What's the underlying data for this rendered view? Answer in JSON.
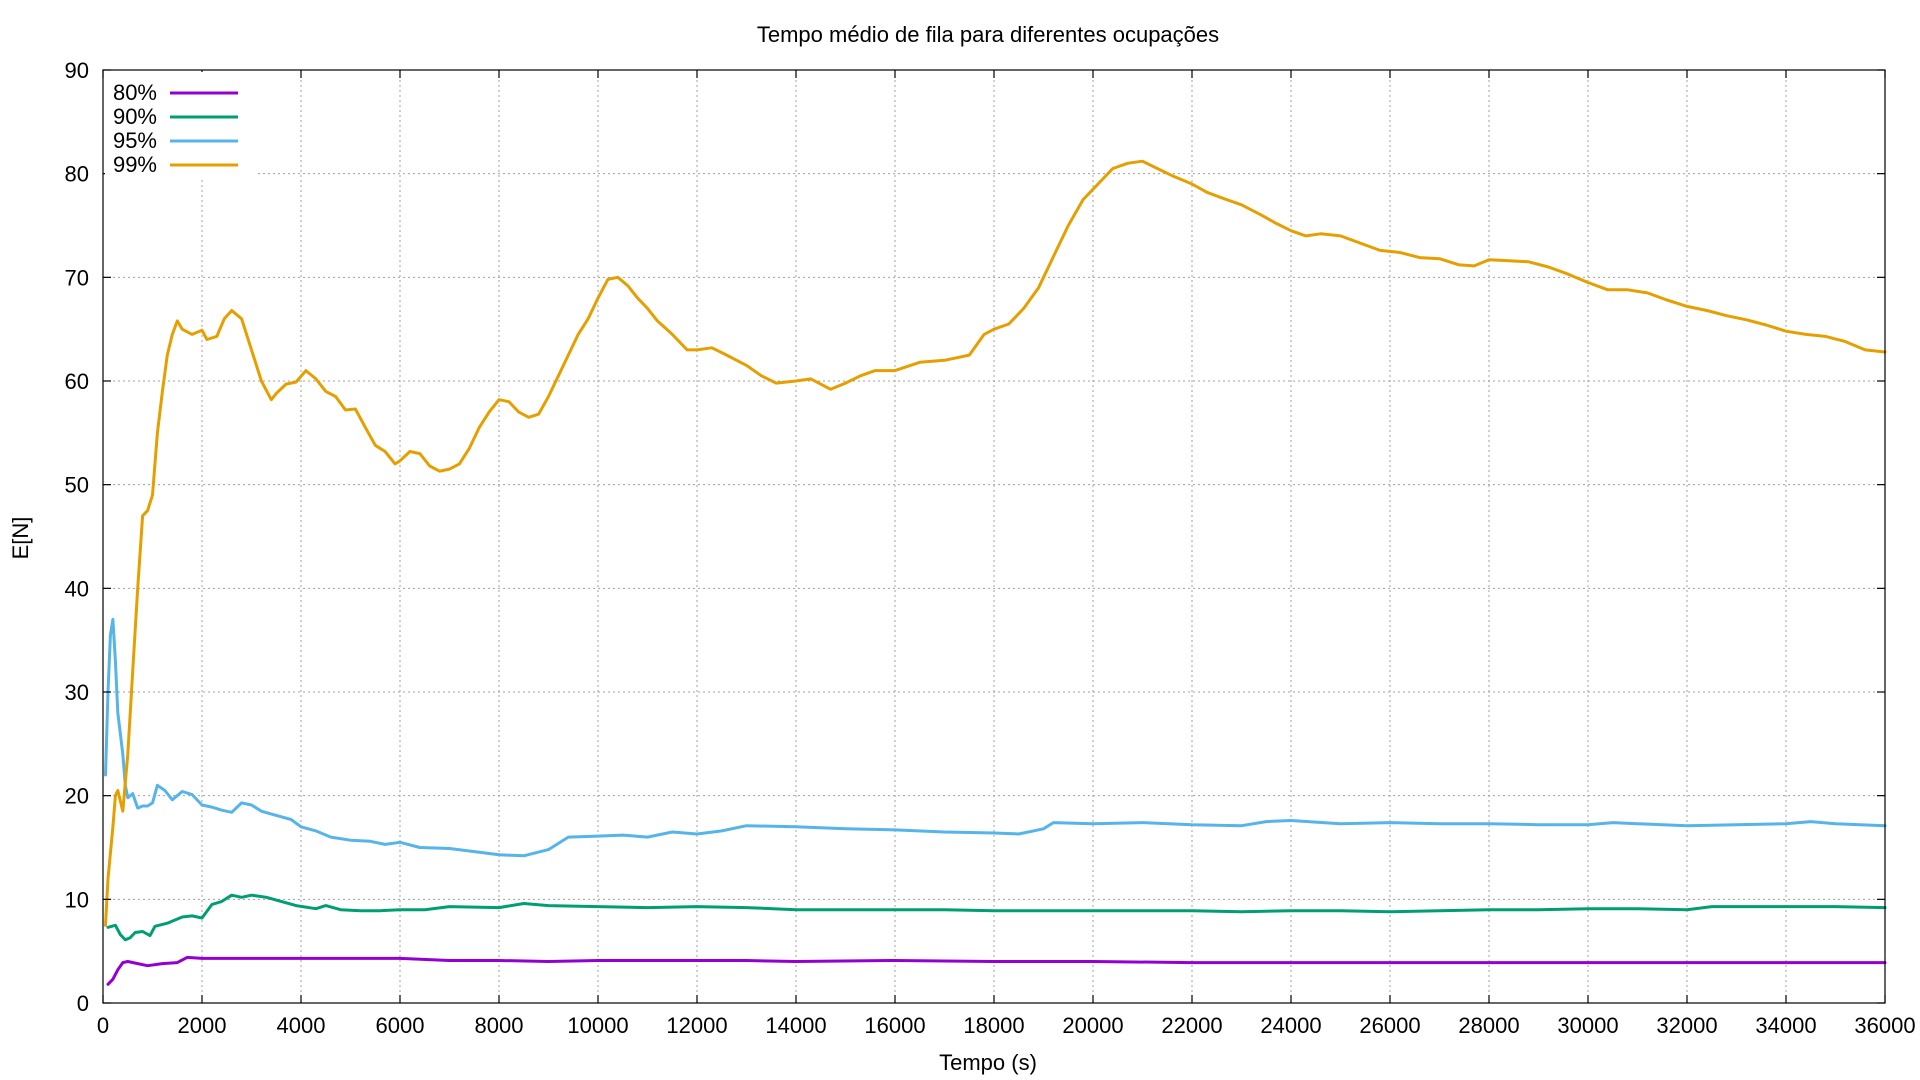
{
  "chart_data": {
    "type": "line",
    "title": "Tempo médio de fila para diferentes ocupações",
    "xlabel": "Tempo (s)",
    "ylabel": "E[N]",
    "xlim": [
      0,
      36000
    ],
    "ylim": [
      0,
      90
    ],
    "xticks": [
      0,
      2000,
      4000,
      6000,
      8000,
      10000,
      12000,
      14000,
      16000,
      18000,
      20000,
      22000,
      24000,
      26000,
      28000,
      30000,
      32000,
      34000,
      36000
    ],
    "yticks": [
      0,
      10,
      20,
      30,
      40,
      50,
      60,
      70,
      80,
      90
    ],
    "grid": true,
    "legend_position": "top-left",
    "series": [
      {
        "name": "80%",
        "color": "#9400d3",
        "points": [
          [
            100,
            1.8
          ],
          [
            200,
            2.3
          ],
          [
            300,
            3.2
          ],
          [
            400,
            3.9
          ],
          [
            500,
            4.0
          ],
          [
            700,
            3.8
          ],
          [
            900,
            3.6
          ],
          [
            1200,
            3.8
          ],
          [
            1500,
            3.9
          ],
          [
            1700,
            4.4
          ],
          [
            2000,
            4.3
          ],
          [
            2500,
            4.3
          ],
          [
            3000,
            4.3
          ],
          [
            4000,
            4.3
          ],
          [
            5000,
            4.3
          ],
          [
            6000,
            4.3
          ],
          [
            7000,
            4.1
          ],
          [
            8000,
            4.1
          ],
          [
            9000,
            4.0
          ],
          [
            10000,
            4.1
          ],
          [
            12000,
            4.1
          ],
          [
            13000,
            4.1
          ],
          [
            14000,
            4.0
          ],
          [
            16000,
            4.1
          ],
          [
            18000,
            4.0
          ],
          [
            20000,
            4.0
          ],
          [
            22000,
            3.9
          ],
          [
            24000,
            3.9
          ],
          [
            26000,
            3.9
          ],
          [
            28000,
            3.9
          ],
          [
            30000,
            3.9
          ],
          [
            32000,
            3.9
          ],
          [
            34000,
            3.9
          ],
          [
            36000,
            3.9
          ]
        ]
      },
      {
        "name": "90%",
        "color": "#009e73",
        "points": [
          [
            100,
            7.3
          ],
          [
            250,
            7.5
          ],
          [
            350,
            6.6
          ],
          [
            450,
            6.1
          ],
          [
            550,
            6.3
          ],
          [
            650,
            6.8
          ],
          [
            800,
            6.9
          ],
          [
            950,
            6.5
          ],
          [
            1050,
            7.4
          ],
          [
            1300,
            7.7
          ],
          [
            1600,
            8.3
          ],
          [
            1800,
            8.4
          ],
          [
            2000,
            8.2
          ],
          [
            2200,
            9.5
          ],
          [
            2400,
            9.8
          ],
          [
            2600,
            10.4
          ],
          [
            2800,
            10.2
          ],
          [
            3000,
            10.4
          ],
          [
            3300,
            10.2
          ],
          [
            3600,
            9.8
          ],
          [
            3900,
            9.4
          ],
          [
            4300,
            9.1
          ],
          [
            4500,
            9.4
          ],
          [
            4800,
            9.0
          ],
          [
            5200,
            8.9
          ],
          [
            5600,
            8.9
          ],
          [
            6000,
            9.0
          ],
          [
            6500,
            9.0
          ],
          [
            7000,
            9.3
          ],
          [
            8000,
            9.2
          ],
          [
            8500,
            9.6
          ],
          [
            9000,
            9.4
          ],
          [
            10000,
            9.3
          ],
          [
            11000,
            9.2
          ],
          [
            12000,
            9.3
          ],
          [
            13000,
            9.2
          ],
          [
            14000,
            9.0
          ],
          [
            15000,
            9.0
          ],
          [
            16000,
            9.0
          ],
          [
            17000,
            9.0
          ],
          [
            18000,
            8.9
          ],
          [
            19000,
            8.9
          ],
          [
            20000,
            8.9
          ],
          [
            21000,
            8.9
          ],
          [
            22000,
            8.9
          ],
          [
            23000,
            8.8
          ],
          [
            24000,
            8.9
          ],
          [
            25000,
            8.9
          ],
          [
            26000,
            8.8
          ],
          [
            27000,
            8.9
          ],
          [
            28000,
            9.0
          ],
          [
            29000,
            9.0
          ],
          [
            30000,
            9.1
          ],
          [
            31000,
            9.1
          ],
          [
            32000,
            9.0
          ],
          [
            32500,
            9.3
          ],
          [
            33000,
            9.3
          ],
          [
            34000,
            9.3
          ],
          [
            35000,
            9.3
          ],
          [
            36000,
            9.2
          ]
        ]
      },
      {
        "name": "95%",
        "color": "#56b4e9",
        "points": [
          [
            50,
            22.0
          ],
          [
            100,
            30.0
          ],
          [
            150,
            35.5
          ],
          [
            200,
            37.0
          ],
          [
            250,
            33.0
          ],
          [
            300,
            28.0
          ],
          [
            400,
            24.0
          ],
          [
            450,
            21.0
          ],
          [
            500,
            19.8
          ],
          [
            600,
            20.2
          ],
          [
            700,
            18.8
          ],
          [
            800,
            19.0
          ],
          [
            900,
            19.0
          ],
          [
            1000,
            19.3
          ],
          [
            1100,
            21.0
          ],
          [
            1250,
            20.5
          ],
          [
            1400,
            19.6
          ],
          [
            1600,
            20.4
          ],
          [
            1800,
            20.1
          ],
          [
            2000,
            19.1
          ],
          [
            2200,
            18.9
          ],
          [
            2400,
            18.6
          ],
          [
            2600,
            18.4
          ],
          [
            2800,
            19.3
          ],
          [
            3000,
            19.1
          ],
          [
            3200,
            18.5
          ],
          [
            3500,
            18.1
          ],
          [
            3800,
            17.7
          ],
          [
            4000,
            17.0
          ],
          [
            4300,
            16.6
          ],
          [
            4600,
            16.0
          ],
          [
            5000,
            15.7
          ],
          [
            5400,
            15.6
          ],
          [
            5700,
            15.3
          ],
          [
            6000,
            15.5
          ],
          [
            6400,
            15.0
          ],
          [
            7000,
            14.9
          ],
          [
            7500,
            14.6
          ],
          [
            8000,
            14.3
          ],
          [
            8500,
            14.2
          ],
          [
            9000,
            14.8
          ],
          [
            9400,
            16.0
          ],
          [
            10000,
            16.1
          ],
          [
            10500,
            16.2
          ],
          [
            11000,
            16.0
          ],
          [
            11500,
            16.5
          ],
          [
            12000,
            16.3
          ],
          [
            12500,
            16.6
          ],
          [
            13000,
            17.1
          ],
          [
            14000,
            17.0
          ],
          [
            15000,
            16.8
          ],
          [
            16000,
            16.7
          ],
          [
            17000,
            16.5
          ],
          [
            18000,
            16.4
          ],
          [
            18500,
            16.3
          ],
          [
            19000,
            16.8
          ],
          [
            19200,
            17.4
          ],
          [
            20000,
            17.3
          ],
          [
            21000,
            17.4
          ],
          [
            22000,
            17.2
          ],
          [
            23000,
            17.1
          ],
          [
            23500,
            17.5
          ],
          [
            24000,
            17.6
          ],
          [
            25000,
            17.3
          ],
          [
            26000,
            17.4
          ],
          [
            27000,
            17.3
          ],
          [
            28000,
            17.3
          ],
          [
            29000,
            17.2
          ],
          [
            30000,
            17.2
          ],
          [
            30500,
            17.4
          ],
          [
            31000,
            17.3
          ],
          [
            32000,
            17.1
          ],
          [
            33000,
            17.2
          ],
          [
            34000,
            17.3
          ],
          [
            34500,
            17.5
          ],
          [
            35000,
            17.3
          ],
          [
            36000,
            17.1
          ]
        ]
      },
      {
        "name": "99%",
        "color": "#e69f00",
        "points": [
          [
            50,
            7.5
          ],
          [
            100,
            12.0
          ],
          [
            200,
            17.0
          ],
          [
            250,
            20.0
          ],
          [
            300,
            20.5
          ],
          [
            400,
            18.5
          ],
          [
            500,
            24.0
          ],
          [
            600,
            32.0
          ],
          [
            700,
            40.0
          ],
          [
            800,
            47.0
          ],
          [
            900,
            47.5
          ],
          [
            1000,
            49.0
          ],
          [
            1100,
            55.0
          ],
          [
            1200,
            59.0
          ],
          [
            1300,
            62.5
          ],
          [
            1400,
            64.5
          ],
          [
            1500,
            65.8
          ],
          [
            1600,
            65.0
          ],
          [
            1800,
            64.5
          ],
          [
            2000,
            64.9
          ],
          [
            2100,
            64.0
          ],
          [
            2300,
            64.3
          ],
          [
            2450,
            66.0
          ],
          [
            2600,
            66.8
          ],
          [
            2800,
            66.0
          ],
          [
            3000,
            63.0
          ],
          [
            3200,
            60.0
          ],
          [
            3400,
            58.2
          ],
          [
            3500,
            58.8
          ],
          [
            3700,
            59.7
          ],
          [
            3900,
            59.9
          ],
          [
            4100,
            61.0
          ],
          [
            4300,
            60.2
          ],
          [
            4500,
            59.0
          ],
          [
            4700,
            58.5
          ],
          [
            4900,
            57.2
          ],
          [
            5100,
            57.3
          ],
          [
            5300,
            55.5
          ],
          [
            5500,
            53.8
          ],
          [
            5700,
            53.2
          ],
          [
            5900,
            52.0
          ],
          [
            6000,
            52.3
          ],
          [
            6200,
            53.2
          ],
          [
            6400,
            53.0
          ],
          [
            6600,
            51.8
          ],
          [
            6800,
            51.3
          ],
          [
            7000,
            51.5
          ],
          [
            7200,
            52.0
          ],
          [
            7400,
            53.5
          ],
          [
            7600,
            55.5
          ],
          [
            7800,
            57.0
          ],
          [
            8000,
            58.2
          ],
          [
            8200,
            58.0
          ],
          [
            8400,
            57.0
          ],
          [
            8600,
            56.5
          ],
          [
            8800,
            56.8
          ],
          [
            9000,
            58.5
          ],
          [
            9200,
            60.5
          ],
          [
            9400,
            62.5
          ],
          [
            9600,
            64.5
          ],
          [
            9800,
            66.0
          ],
          [
            10000,
            68.0
          ],
          [
            10200,
            69.8
          ],
          [
            10400,
            70.0
          ],
          [
            10600,
            69.2
          ],
          [
            10800,
            68.0
          ],
          [
            11000,
            67.0
          ],
          [
            11200,
            65.8
          ],
          [
            11500,
            64.5
          ],
          [
            11800,
            63.0
          ],
          [
            12000,
            63.0
          ],
          [
            12300,
            63.2
          ],
          [
            12600,
            62.5
          ],
          [
            13000,
            61.5
          ],
          [
            13300,
            60.5
          ],
          [
            13600,
            59.8
          ],
          [
            14000,
            60.0
          ],
          [
            14300,
            60.2
          ],
          [
            14700,
            59.2
          ],
          [
            15000,
            59.8
          ],
          [
            15300,
            60.5
          ],
          [
            15600,
            61.0
          ],
          [
            16000,
            61.0
          ],
          [
            16500,
            61.8
          ],
          [
            17000,
            62.0
          ],
          [
            17500,
            62.5
          ],
          [
            17800,
            64.5
          ],
          [
            18000,
            65.0
          ],
          [
            18300,
            65.5
          ],
          [
            18600,
            67.0
          ],
          [
            18900,
            69.0
          ],
          [
            19200,
            72.0
          ],
          [
            19500,
            75.0
          ],
          [
            19800,
            77.5
          ],
          [
            20100,
            79.0
          ],
          [
            20400,
            80.5
          ],
          [
            20700,
            81.0
          ],
          [
            21000,
            81.2
          ],
          [
            21300,
            80.5
          ],
          [
            21600,
            79.8
          ],
          [
            22000,
            79.0
          ],
          [
            22300,
            78.2
          ],
          [
            22700,
            77.5
          ],
          [
            23000,
            77.0
          ],
          [
            23400,
            76.0
          ],
          [
            23700,
            75.2
          ],
          [
            24000,
            74.5
          ],
          [
            24300,
            74.0
          ],
          [
            24600,
            74.2
          ],
          [
            25000,
            74.0
          ],
          [
            25400,
            73.3
          ],
          [
            25800,
            72.6
          ],
          [
            26200,
            72.4
          ],
          [
            26600,
            71.9
          ],
          [
            27000,
            71.8
          ],
          [
            27400,
            71.2
          ],
          [
            27700,
            71.1
          ],
          [
            28000,
            71.7
          ],
          [
            28400,
            71.6
          ],
          [
            28800,
            71.5
          ],
          [
            29200,
            71.0
          ],
          [
            29600,
            70.3
          ],
          [
            30000,
            69.5
          ],
          [
            30400,
            68.8
          ],
          [
            30800,
            68.8
          ],
          [
            31200,
            68.5
          ],
          [
            31600,
            67.8
          ],
          [
            32000,
            67.2
          ],
          [
            32400,
            66.8
          ],
          [
            32800,
            66.3
          ],
          [
            33200,
            65.9
          ],
          [
            33600,
            65.4
          ],
          [
            34000,
            64.8
          ],
          [
            34400,
            64.5
          ],
          [
            34800,
            64.3
          ],
          [
            35200,
            63.8
          ],
          [
            35600,
            63.0
          ],
          [
            36000,
            62.8
          ]
        ]
      }
    ]
  }
}
